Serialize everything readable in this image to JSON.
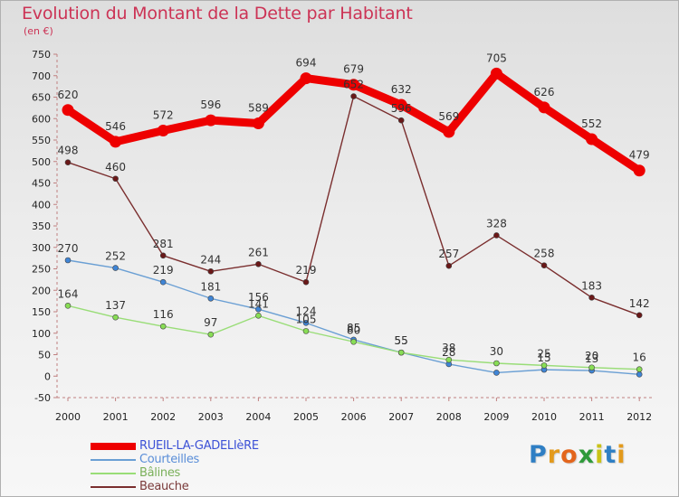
{
  "header": {
    "title": "Evolution du Montant de la Dette par Habitant",
    "subtitle": "(en €)"
  },
  "logo": {
    "letters": [
      "P",
      "r",
      "o",
      "x",
      "i",
      "t",
      "i"
    ],
    "colors": [
      "#2f7fc4",
      "#e39a1c",
      "#e3651c",
      "#2f9a3a",
      "#c9c217",
      "#2f7fc4",
      "#e39a1c"
    ]
  },
  "chart_data": {
    "type": "line",
    "title": "Evolution du Montant de la Dette par Habitant",
    "subtitle": "(en €)",
    "xlabel": "",
    "ylabel": "",
    "x": [
      "2000",
      "2001",
      "2002",
      "2003",
      "2004",
      "2005",
      "2006",
      "2007",
      "2008",
      "2009",
      "2010",
      "2011",
      "2012"
    ],
    "ylim": [
      -50,
      750
    ],
    "yticks": [
      -50,
      0,
      50,
      100,
      150,
      200,
      250,
      300,
      350,
      400,
      450,
      500,
      550,
      600,
      650,
      700,
      750
    ],
    "grid": false,
    "legend_position": "bottom-left",
    "series": [
      {
        "name": "RUEIL-LA-GADELIèRE",
        "color": "#ee0000",
        "legend_color": "#3d52d6",
        "marker": "#ee0000",
        "values": [
          620,
          546,
          572,
          596,
          589,
          694,
          679,
          632,
          569,
          705,
          626,
          552,
          479
        ],
        "labels": [
          "620",
          "546",
          "572",
          "596",
          "589",
          "694",
          "679",
          "632",
          "569",
          "705",
          "626",
          "552",
          "479"
        ]
      },
      {
        "name": "Courteilles",
        "color": "#6a9fd4",
        "legend_color": "#5a8ed8",
        "marker": "#3f85d6",
        "values": [
          270,
          252,
          219,
          181,
          156,
          124,
          85,
          55,
          28,
          8,
          15,
          13,
          4
        ],
        "labels": [
          "270",
          "252",
          "219",
          "181",
          "156",
          "124",
          "85",
          "55",
          "28",
          "",
          "15",
          "13",
          ""
        ]
      },
      {
        "name": "Bâlines",
        "color": "#99dd77",
        "legend_color": "#7ab05a",
        "marker": "#88dd55",
        "values": [
          164,
          137,
          116,
          97,
          141,
          105,
          80,
          55,
          38,
          30,
          25,
          20,
          16
        ],
        "labels": [
          "164",
          "137",
          "116",
          "97",
          "141",
          "105",
          "80",
          "55",
          "38",
          "30",
          "25",
          "20",
          "16"
        ]
      },
      {
        "name": "Beauche",
        "color": "#7a2e2e",
        "legend_color": "#7a3a3a",
        "marker": "#6a1818",
        "values": [
          498,
          460,
          281,
          244,
          261,
          219,
          652,
          596,
          257,
          328,
          258,
          183,
          142
        ],
        "labels": [
          "498",
          "460",
          "281",
          "244",
          "261",
          "219",
          "652",
          "596",
          "257",
          "328",
          "258",
          "183",
          "142"
        ]
      }
    ]
  }
}
